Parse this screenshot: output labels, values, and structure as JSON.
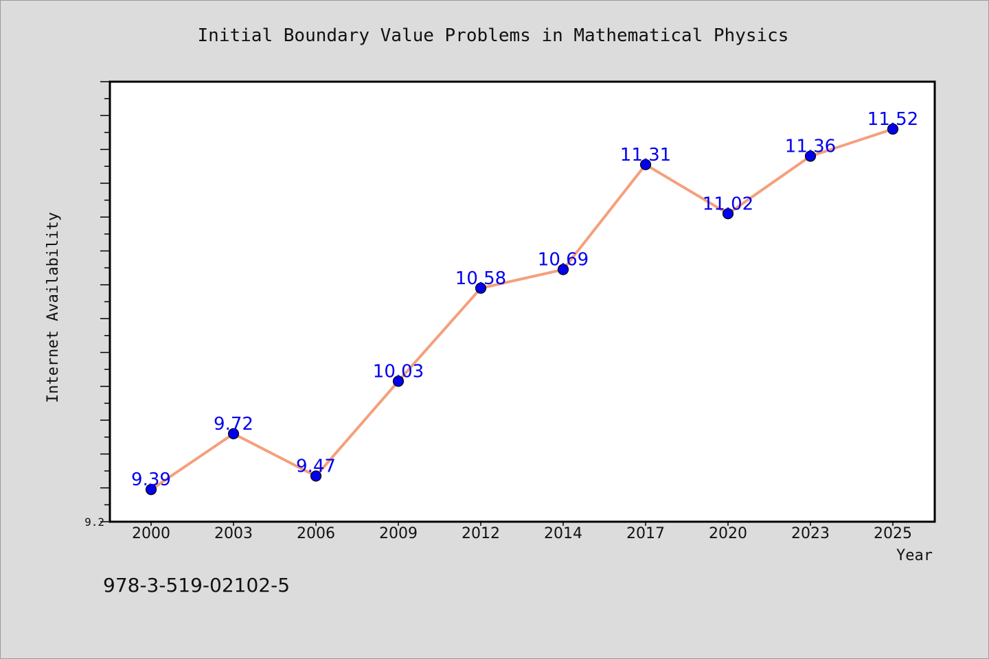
{
  "chart_data": {
    "type": "line",
    "title": "Initial Boundary Value Problems in Mathematical Physics",
    "xlabel": "Year",
    "ylabel": "Internet Availability",
    "categories": [
      "2000",
      "2003",
      "2006",
      "2009",
      "2012",
      "2014",
      "2017",
      "2020",
      "2023",
      "2025"
    ],
    "series": [
      {
        "values": [
          9.39,
          9.72,
          9.47,
          10.03,
          10.58,
          10.69,
          11.31,
          11.02,
          11.36,
          11.52
        ],
        "labels": [
          "9.39",
          "9.72",
          "9.47",
          "10.03",
          "10.58",
          "10.69",
          "11.31",
          "11.02",
          "11.36",
          "11.52"
        ]
      }
    ],
    "ylim": [
      9.2,
      11.8
    ],
    "yticks_labeled": [
      "9.2"
    ],
    "grid": false,
    "colors": {
      "line": "#f4a07c",
      "marker": "#0000ee",
      "label": "#0000ee",
      "background": "#dcdcdc",
      "plot_bg": "#ffffff"
    }
  },
  "footer": {
    "isbn": "978-3-519-02102-5"
  }
}
